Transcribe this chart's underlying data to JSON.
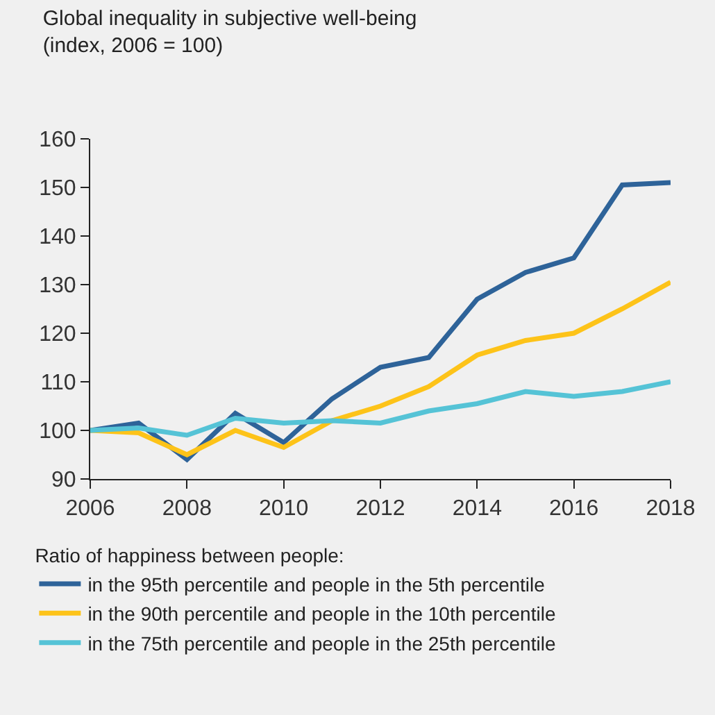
{
  "chart_data": {
    "type": "line",
    "title": "Global inequality in subjective well-being",
    "subtitle": "(index, 2006 = 100)",
    "x": [
      2006,
      2007,
      2008,
      2009,
      2010,
      2011,
      2012,
      2013,
      2014,
      2015,
      2016,
      2017,
      2018
    ],
    "xlim": [
      2006,
      2018
    ],
    "xticks": [
      2006,
      2008,
      2010,
      2012,
      2014,
      2016,
      2018
    ],
    "ylim": [
      90,
      160
    ],
    "yticks": [
      90,
      100,
      110,
      120,
      130,
      140,
      150,
      160
    ],
    "grid": false,
    "legend": "bottom",
    "legend_title": "Ratio of happiness between people:",
    "line_style": "solid",
    "marker": "none",
    "series": [
      {
        "name": "in the 95th percentile and people in the 5th percentile",
        "color": "#2e6399",
        "values": [
          100,
          101.5,
          94,
          103.5,
          97.5,
          106.5,
          113,
          115,
          127,
          132.5,
          135.5,
          150.5,
          151
        ]
      },
      {
        "name": "in the 90th percentile and people in the 10th percentile",
        "color": "#fdc319",
        "values": [
          100,
          99.5,
          95,
          100,
          96.5,
          102,
          105,
          109,
          115.5,
          118.5,
          120,
          125,
          130.5
        ]
      },
      {
        "name": "in the 75th percentile and people in the 25th percentile",
        "color": "#55c3d6",
        "values": [
          100,
          100.5,
          99,
          102.5,
          101.5,
          102,
          101.5,
          104,
          105.5,
          108,
          107,
          108,
          110
        ]
      }
    ]
  }
}
